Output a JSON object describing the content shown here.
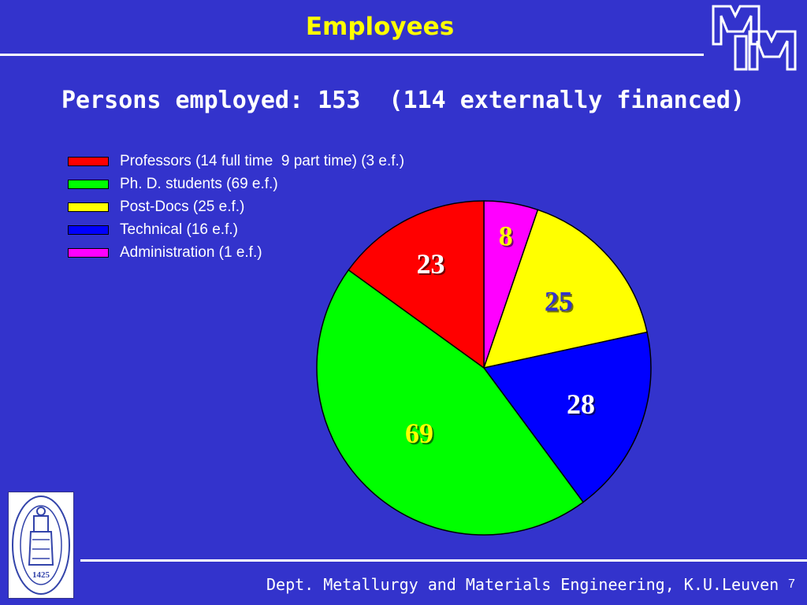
{
  "slide": {
    "title": "Employees",
    "subtitle": "Persons employed: 153  (114 externally financed)",
    "footer": "Dept. Metallurgy and Materials Engineering, K.U.Leuven",
    "page_number": "7",
    "seal_text": "1425",
    "colors": {
      "background": "#3333cc",
      "title": "#ffff00",
      "text": "#ffffff"
    }
  },
  "chart_data": {
    "type": "pie",
    "title": "",
    "total": 153,
    "legend_position": "top-left",
    "slices": [
      {
        "legend": "Professors (14 full time  9 part time) (3 e.f.)",
        "value": 23,
        "label": "23",
        "color": "#ff0000",
        "label_color": "#ffffff"
      },
      {
        "legend": "Ph. D. students (69 e.f.)",
        "value": 69,
        "label": "69",
        "color": "#00ff00",
        "label_color": "#ffff00"
      },
      {
        "legend": "Post-Docs (25 e.f.)",
        "value": 25,
        "label": "25",
        "color": "#ffff00",
        "label_color": "#3333cc"
      },
      {
        "legend": "Technical (16 e.f.)",
        "value": 28,
        "label": "28",
        "color": "#0000ff",
        "label_color": "#ffffff"
      },
      {
        "legend": "Administration (1 e.f.)",
        "value": 8,
        "label": "8",
        "color": "#ff00ff",
        "label_color": "#ffff00"
      }
    ],
    "draw_order": [
      4,
      2,
      3,
      1,
      0
    ]
  }
}
